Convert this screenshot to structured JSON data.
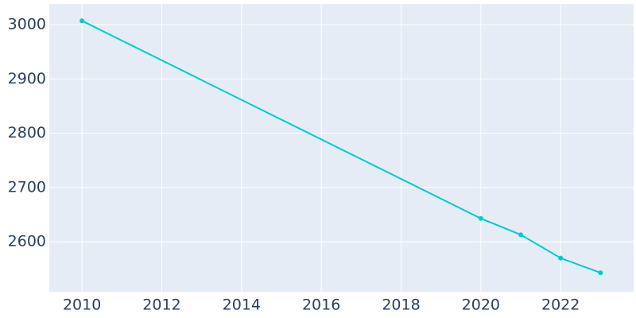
{
  "chart_data": {
    "type": "line",
    "x": [
      2010,
      2020,
      2021,
      2022,
      2023
    ],
    "series": [
      {
        "color": "#00cccc",
        "values": [
          3007,
          2643,
          2613,
          2570,
          2543
        ]
      }
    ],
    "xlim": [
      2009.18,
      2023.83
    ],
    "xticks": [
      2010,
      2012,
      2014,
      2016,
      2018,
      2020,
      2022
    ],
    "ylim": [
      2508,
      3038
    ],
    "yticks": [
      2600,
      2700,
      2800,
      2900,
      3000
    ],
    "grid": true
  }
}
